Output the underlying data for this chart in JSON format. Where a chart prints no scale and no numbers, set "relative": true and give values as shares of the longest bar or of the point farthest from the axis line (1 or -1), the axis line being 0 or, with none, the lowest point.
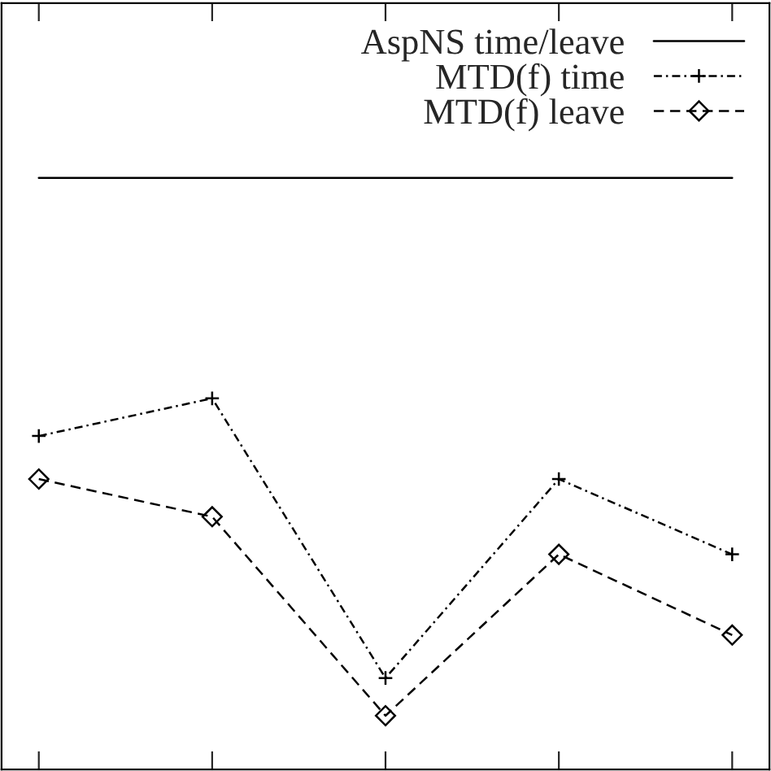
{
  "chart_data": {
    "type": "line",
    "relative": true,
    "categories": [
      null,
      null,
      null,
      null,
      null
    ],
    "grid": false,
    "legend": "top right",
    "series": [
      {
        "name": "AspNS time/leave",
        "color": "#000000",
        "line_style": "solid",
        "marker": "none",
        "values": [
          1,
          1,
          1,
          1,
          1
        ]
      },
      {
        "name": "MTD(f) time",
        "color": "#000000",
        "line_style": "dashdot",
        "marker": "cross",
        "values": [
          0.52,
          0.59,
          0.07,
          0.44,
          0.3
        ]
      },
      {
        "name": "MTD(f) leave",
        "color": "#000000",
        "line_style": "dashed",
        "marker": "diamond",
        "values": [
          0.44,
          0.37,
          0,
          0.3,
          0.15
        ]
      }
    ]
  }
}
